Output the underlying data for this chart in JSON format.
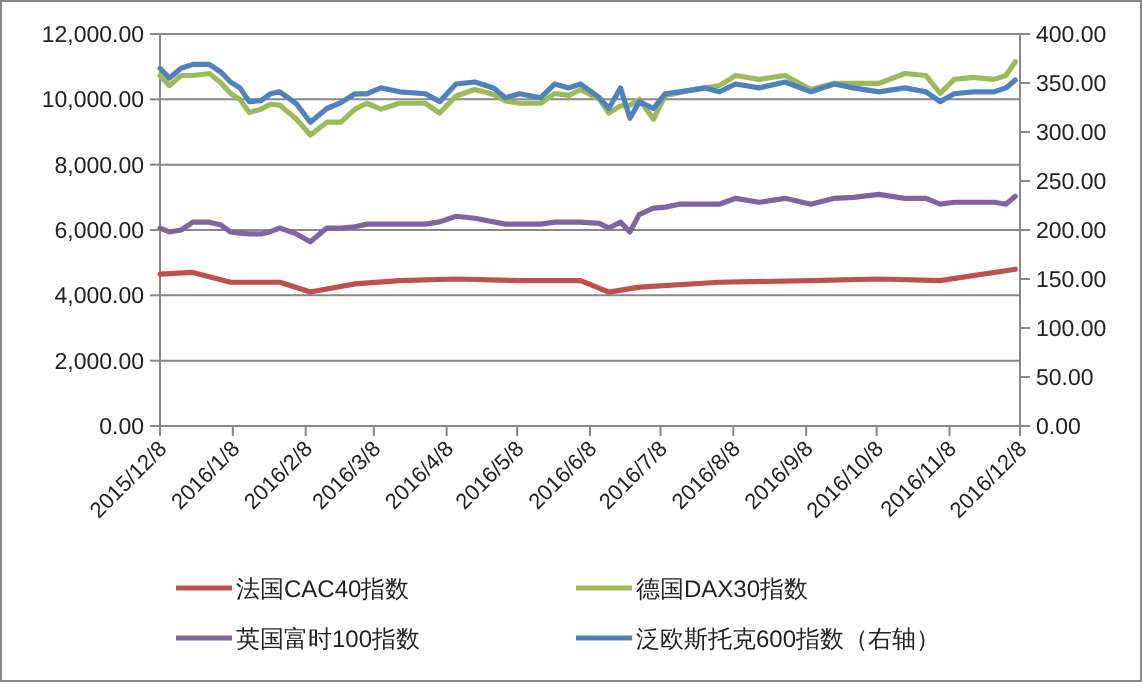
{
  "chart_data": {
    "type": "line",
    "x": [
      "2015-12-08",
      "2015-12-12",
      "2015-12-17",
      "2015-12-22",
      "2015-12-29",
      "2016-01-03",
      "2016-01-07",
      "2016-01-11",
      "2016-01-15",
      "2016-01-20",
      "2016-01-24",
      "2016-01-28",
      "2016-02-04",
      "2016-02-10",
      "2016-02-17",
      "2016-02-23",
      "2016-02-29",
      "2016-03-05",
      "2016-03-11",
      "2016-03-19",
      "2016-03-30",
      "2016-04-05",
      "2016-04-12",
      "2016-04-20",
      "2016-04-28",
      "2016-05-03",
      "2016-05-09",
      "2016-05-18",
      "2016-05-24",
      "2016-05-30",
      "2016-06-04",
      "2016-06-12",
      "2016-06-16",
      "2016-06-21",
      "2016-06-25",
      "2016-06-29",
      "2016-07-05",
      "2016-07-10",
      "2016-07-16",
      "2016-07-22",
      "2016-07-27",
      "2016-08-02",
      "2016-08-09",
      "2016-08-19",
      "2016-08-30",
      "2016-09-10",
      "2016-09-20",
      "2016-09-28",
      "2016-10-09",
      "2016-10-20",
      "2016-10-29",
      "2016-11-04",
      "2016-11-10",
      "2016-11-18",
      "2016-11-27",
      "2016-12-02",
      "2016-12-06"
    ],
    "series": [
      {
        "name": "法国CAC40指数",
        "color": "#c0504d",
        "x": [
          "2015-12-08",
          "2015-12-22",
          "2016-01-07",
          "2016-01-28",
          "2016-02-10",
          "2016-02-29",
          "2016-03-19",
          "2016-04-12",
          "2016-05-09",
          "2016-06-04",
          "2016-06-16",
          "2016-06-29",
          "2016-08-02",
          "2016-09-10",
          "2016-10-09",
          "2016-11-04",
          "2016-12-06"
        ],
        "values": [
          4650,
          4700,
          4400,
          4400,
          4100,
          4350,
          4450,
          4500,
          4450,
          4450,
          4100,
          4250,
          4400,
          4450,
          4500,
          4450,
          4800
        ]
      },
      {
        "name": "德国DAX30指数",
        "color": "#9bbb59",
        "values": [
          10730,
          10420,
          10730,
          10730,
          10790,
          10500,
          10180,
          10000,
          9600,
          9700,
          9850,
          9820,
          9400,
          8910,
          9300,
          9300,
          9700,
          9880,
          9700,
          9880,
          9880,
          9580,
          10100,
          10300,
          10150,
          9950,
          9880,
          9880,
          10180,
          10120,
          10300,
          10000,
          9580,
          9800,
          9820,
          10000,
          9390,
          10120,
          10200,
          10300,
          10350,
          10420,
          10730,
          10610,
          10730,
          10300,
          10490,
          10490,
          10490,
          10790,
          10730,
          10180,
          10610,
          10670,
          10610,
          10730,
          11150
        ]
      },
      {
        "name": "英国富时100指数",
        "color": "#8064a2",
        "values": [
          6060,
          5940,
          6000,
          6240,
          6240,
          6150,
          5940,
          5900,
          5880,
          5880,
          5950,
          6060,
          5880,
          5640,
          6060,
          6060,
          6100,
          6180,
          6180,
          6180,
          6180,
          6250,
          6420,
          6360,
          6250,
          6180,
          6180,
          6180,
          6240,
          6240,
          6240,
          6200,
          6060,
          6240,
          5940,
          6480,
          6670,
          6700,
          6790,
          6790,
          6790,
          6790,
          6970,
          6850,
          6970,
          6790,
          6970,
          7000,
          7090,
          6970,
          6970,
          6790,
          6850,
          6850,
          6850,
          6790,
          7030
        ]
      },
      {
        "name": "泛欧斯托克600指数（右轴）",
        "color": "#4f81bd",
        "axis": "y2",
        "values": [
          365,
          355,
          365,
          369,
          369,
          361,
          351,
          345,
          331,
          332,
          339,
          341,
          329,
          310,
          324,
          330,
          339,
          339,
          345,
          341,
          339,
          331,
          349,
          351,
          345,
          335,
          339,
          335,
          349,
          345,
          349,
          335,
          324,
          345,
          314,
          331,
          324,
          339,
          341,
          343,
          345,
          341,
          349,
          345,
          351,
          341,
          349,
          345,
          341,
          345,
          341,
          331,
          339,
          341,
          341,
          345,
          353
        ]
      }
    ],
    "xlim": [
      "2015-12-08",
      "2016-12-08"
    ],
    "xticks": [
      {
        "value": "2015-12-08",
        "label": "2015/12/8"
      },
      {
        "value": "2016-01-08",
        "label": "2016/1/8"
      },
      {
        "value": "2016-02-08",
        "label": "2016/2/8"
      },
      {
        "value": "2016-03-08",
        "label": "2016/3/8"
      },
      {
        "value": "2016-04-08",
        "label": "2016/4/8"
      },
      {
        "value": "2016-05-08",
        "label": "2016/5/8"
      },
      {
        "value": "2016-06-08",
        "label": "2016/6/8"
      },
      {
        "value": "2016-07-08",
        "label": "2016/7/8"
      },
      {
        "value": "2016-08-08",
        "label": "2016/8/8"
      },
      {
        "value": "2016-09-08",
        "label": "2016/9/8"
      },
      {
        "value": "2016-10-08",
        "label": "2016/10/8"
      },
      {
        "value": "2016-11-08",
        "label": "2016/11/8"
      },
      {
        "value": "2016-12-08",
        "label": "2016/12/8"
      }
    ],
    "ylim": [
      0,
      12000
    ],
    "yticks": [
      {
        "value": 0,
        "label": "0.00"
      },
      {
        "value": 2000,
        "label": "2,000.00"
      },
      {
        "value": 4000,
        "label": "4,000.00"
      },
      {
        "value": 6000,
        "label": "6,000.00"
      },
      {
        "value": 8000,
        "label": "8,000.00"
      },
      {
        "value": 10000,
        "label": "10,000.00"
      },
      {
        "value": 12000,
        "label": "12,000.00"
      }
    ],
    "y2lim": [
      0,
      400
    ],
    "y2ticks": [
      {
        "value": 0,
        "label": "0.00"
      },
      {
        "value": 50,
        "label": "50.00"
      },
      {
        "value": 100,
        "label": "100.00"
      },
      {
        "value": 150,
        "label": "150.00"
      },
      {
        "value": 200,
        "label": "200.00"
      },
      {
        "value": 250,
        "label": "250.00"
      },
      {
        "value": 300,
        "label": "300.00"
      },
      {
        "value": 350,
        "label": "350.00"
      },
      {
        "value": 400,
        "label": "400.00"
      }
    ],
    "grid": "y",
    "legend": "bottom",
    "marker": "none",
    "line_style": "solid"
  }
}
